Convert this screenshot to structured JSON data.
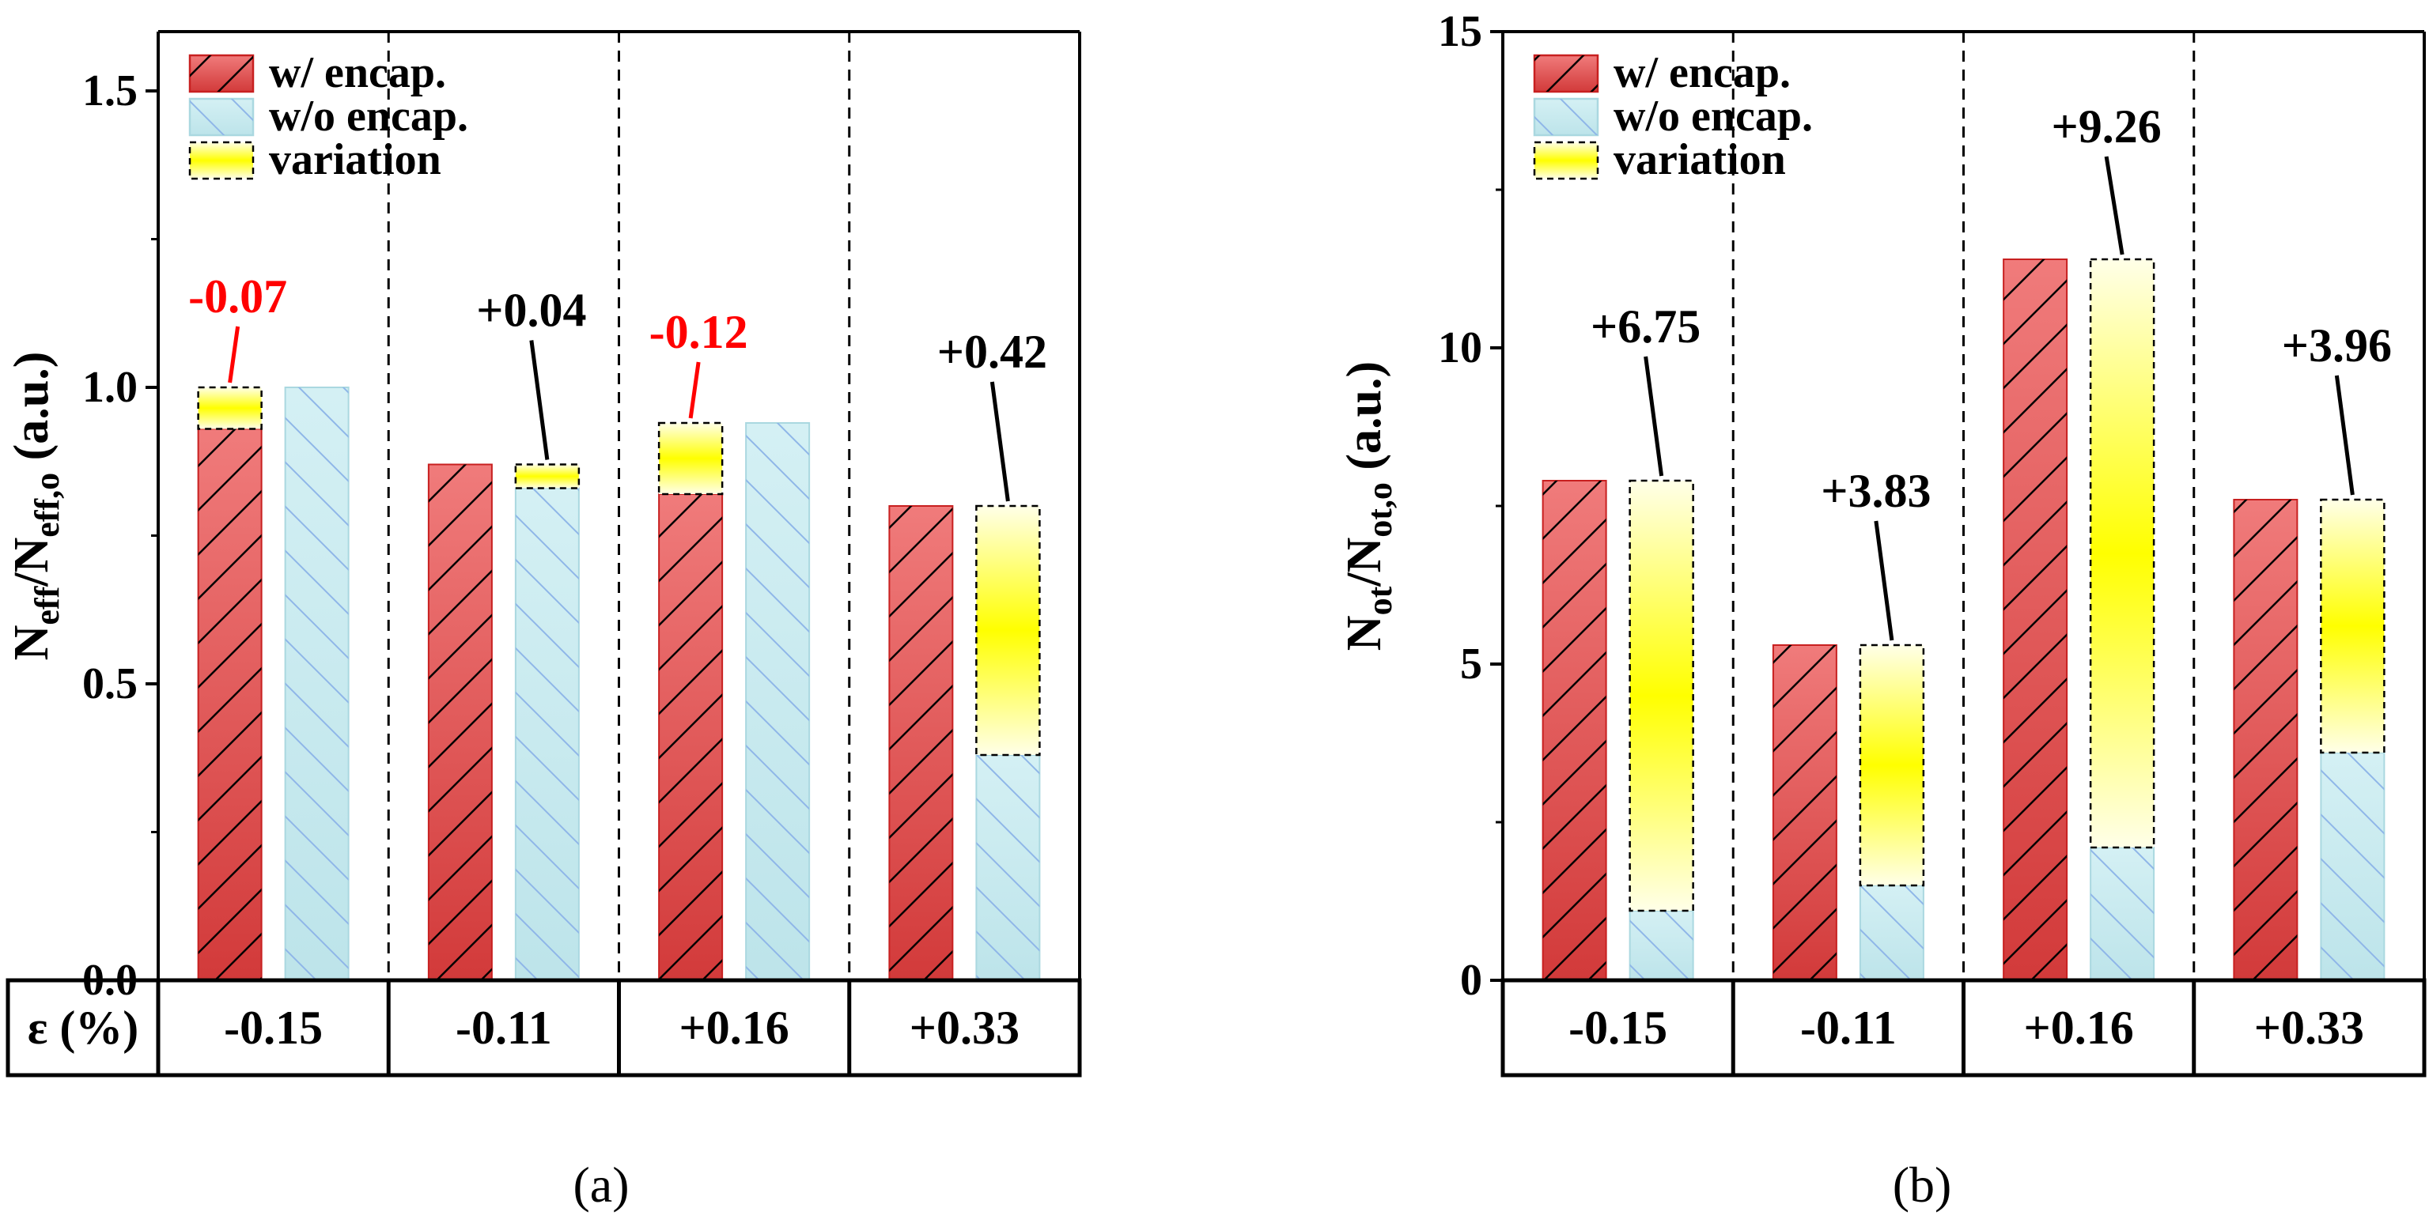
{
  "figure": {
    "colors": {
      "with_encap": "#d63c3c",
      "without_encap": "#c9ebf0",
      "variation": "#ffff00",
      "negative_annotation": "#ff0000",
      "positive_annotation": "#000000"
    },
    "legend": {
      "with_encap": "w/ encap.",
      "without_encap": "w/o encap.",
      "variation": "variation"
    }
  },
  "chart_data": [
    {
      "type": "bar",
      "panel_label": "(a)",
      "ylabel_main": "N",
      "ylabel_sub1": "eff",
      "ylabel_mid": "/N",
      "ylabel_sub2": "eff,o",
      "ylabel_unit": " (a.u.)",
      "xlabel": "ε (%)",
      "ylim": [
        0,
        1.6
      ],
      "yticks": [
        "0.0",
        "0.5",
        "1.0",
        "1.5"
      ],
      "ytick_values": [
        0,
        0.5,
        1.0,
        1.5
      ],
      "categories": [
        "-0.15",
        "-0.11",
        "+0.16",
        "+0.33"
      ],
      "series": [
        {
          "name": "w/ encap.",
          "values": [
            0.93,
            0.87,
            0.82,
            0.8
          ]
        },
        {
          "name": "w/o encap.",
          "values": [
            1.0,
            0.83,
            0.94,
            0.38
          ]
        }
      ],
      "variation": [
        {
          "bar": "w/ encap.",
          "low": 0.93,
          "high": 1.0,
          "label": "-0.07",
          "sign": "negative"
        },
        {
          "bar": "w/o encap.",
          "low": 0.83,
          "high": 0.87,
          "label": "+0.04",
          "sign": "positive"
        },
        {
          "bar": "w/ encap.",
          "low": 0.82,
          "high": 0.94,
          "label": "-0.12",
          "sign": "negative"
        },
        {
          "bar": "w/o encap.",
          "low": 0.38,
          "high": 0.8,
          "label": "+0.42",
          "sign": "positive"
        }
      ]
    },
    {
      "type": "bar",
      "panel_label": "(b)",
      "ylabel_main": "N",
      "ylabel_sub1": "ot",
      "ylabel_mid": "/N",
      "ylabel_sub2": "ot,o",
      "ylabel_unit": " (a.u.)",
      "xlabel": "",
      "ylim": [
        0,
        15
      ],
      "yticks": [
        "0",
        "5",
        "10",
        "15"
      ],
      "ytick_values": [
        0,
        5,
        10,
        15
      ],
      "categories": [
        "-0.15",
        "-0.11",
        "+0.16",
        "+0.33"
      ],
      "series": [
        {
          "name": "w/ encap.",
          "values": [
            7.9,
            5.3,
            11.4,
            7.6
          ]
        },
        {
          "name": "w/o encap.",
          "values": [
            1.1,
            1.5,
            2.1,
            3.6
          ]
        }
      ],
      "variation": [
        {
          "bar": "w/o encap.",
          "low": 1.1,
          "high": 7.9,
          "label": "+6.75",
          "sign": "positive"
        },
        {
          "bar": "w/o encap.",
          "low": 1.5,
          "high": 5.3,
          "label": "+3.83",
          "sign": "positive"
        },
        {
          "bar": "w/o encap.",
          "low": 2.1,
          "high": 11.4,
          "label": "+9.26",
          "sign": "positive"
        },
        {
          "bar": "w/o encap.",
          "low": 3.6,
          "high": 7.6,
          "label": "+3.96",
          "sign": "positive"
        }
      ]
    }
  ]
}
